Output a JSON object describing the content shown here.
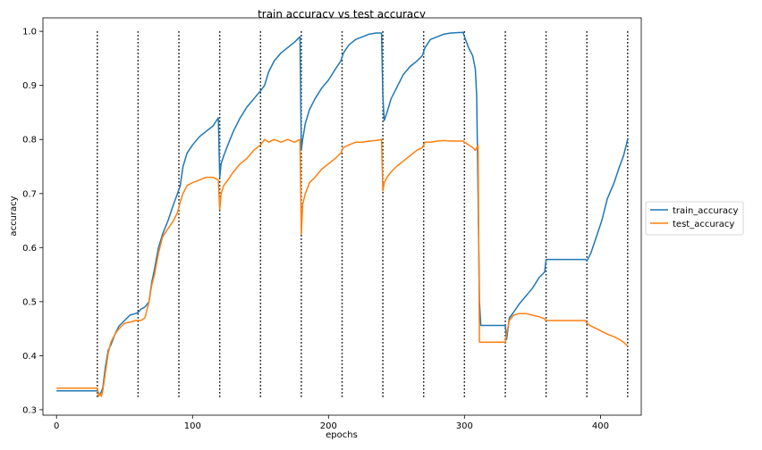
{
  "chart_data": {
    "type": "line",
    "title": "train accuracy vs test accuracy",
    "xlabel": "epochs",
    "ylabel": "accuracy",
    "xlim": [
      -10,
      430
    ],
    "ylim": [
      0.29,
      1.025
    ],
    "xticks": [
      0,
      100,
      200,
      300,
      400
    ],
    "yticks": [
      0.3,
      0.4,
      0.5,
      0.6,
      0.7,
      0.8,
      0.9,
      1.0
    ],
    "grid": false,
    "legend": "outside-right",
    "vlines": {
      "x": [
        30,
        60,
        90,
        120,
        150,
        180,
        210,
        240,
        270,
        300,
        330,
        360,
        390,
        420
      ],
      "ymin": 0.32,
      "ymax": 1.0,
      "style": "dotted",
      "color": "#000000"
    },
    "series": [
      {
        "name": "train_accuracy",
        "color": "#1f77b4",
        "points": [
          [
            0,
            0.335
          ],
          [
            30,
            0.335
          ],
          [
            32,
            0.328
          ],
          [
            34,
            0.34
          ],
          [
            36,
            0.38
          ],
          [
            38,
            0.41
          ],
          [
            40,
            0.42
          ],
          [
            43,
            0.44
          ],
          [
            46,
            0.455
          ],
          [
            50,
            0.465
          ],
          [
            54,
            0.475
          ],
          [
            58,
            0.478
          ],
          [
            60,
            0.48
          ],
          [
            62,
            0.486
          ],
          [
            65,
            0.49
          ],
          [
            68,
            0.5
          ],
          [
            70,
            0.535
          ],
          [
            72,
            0.56
          ],
          [
            75,
            0.6
          ],
          [
            78,
            0.625
          ],
          [
            82,
            0.65
          ],
          [
            86,
            0.68
          ],
          [
            89,
            0.7
          ],
          [
            91,
            0.715
          ],
          [
            93,
            0.75
          ],
          [
            96,
            0.775
          ],
          [
            100,
            0.79
          ],
          [
            105,
            0.805
          ],
          [
            110,
            0.815
          ],
          [
            115,
            0.825
          ],
          [
            119,
            0.84
          ],
          [
            120,
            0.73
          ],
          [
            121,
            0.755
          ],
          [
            123,
            0.77
          ],
          [
            126,
            0.79
          ],
          [
            130,
            0.815
          ],
          [
            135,
            0.84
          ],
          [
            140,
            0.86
          ],
          [
            145,
            0.875
          ],
          [
            150,
            0.89
          ],
          [
            153,
            0.9
          ],
          [
            156,
            0.925
          ],
          [
            160,
            0.945
          ],
          [
            165,
            0.96
          ],
          [
            170,
            0.97
          ],
          [
            175,
            0.98
          ],
          [
            179,
            0.99
          ],
          [
            180,
            0.78
          ],
          [
            181,
            0.8
          ],
          [
            183,
            0.83
          ],
          [
            186,
            0.855
          ],
          [
            190,
            0.875
          ],
          [
            195,
            0.895
          ],
          [
            200,
            0.91
          ],
          [
            205,
            0.93
          ],
          [
            209,
            0.945
          ],
          [
            211,
            0.96
          ],
          [
            215,
            0.975
          ],
          [
            220,
            0.985
          ],
          [
            225,
            0.99
          ],
          [
            230,
            0.995
          ],
          [
            235,
            0.997
          ],
          [
            239,
            0.997
          ],
          [
            240,
            0.88
          ],
          [
            241,
            0.835
          ],
          [
            243,
            0.85
          ],
          [
            246,
            0.875
          ],
          [
            250,
            0.895
          ],
          [
            255,
            0.92
          ],
          [
            260,
            0.935
          ],
          [
            265,
            0.945
          ],
          [
            269,
            0.955
          ],
          [
            271,
            0.97
          ],
          [
            275,
            0.985
          ],
          [
            280,
            0.99
          ],
          [
            285,
            0.995
          ],
          [
            290,
            0.997
          ],
          [
            299,
            0.998
          ],
          [
            300,
            0.99
          ],
          [
            303,
            0.97
          ],
          [
            306,
            0.955
          ],
          [
            308,
            0.93
          ],
          [
            309,
            0.88
          ],
          [
            310,
            0.7
          ],
          [
            311,
            0.5
          ],
          [
            312,
            0.456
          ],
          [
            330,
            0.456
          ],
          [
            331,
            0.43
          ],
          [
            333,
            0.47
          ],
          [
            336,
            0.48
          ],
          [
            340,
            0.495
          ],
          [
            345,
            0.51
          ],
          [
            350,
            0.525
          ],
          [
            355,
            0.545
          ],
          [
            359,
            0.555
          ],
          [
            360,
            0.578
          ],
          [
            389,
            0.578
          ],
          [
            390,
            0.575
          ],
          [
            393,
            0.59
          ],
          [
            397,
            0.62
          ],
          [
            401,
            0.65
          ],
          [
            405,
            0.69
          ],
          [
            410,
            0.72
          ],
          [
            414,
            0.75
          ],
          [
            417,
            0.77
          ],
          [
            420,
            0.8
          ]
        ]
      },
      {
        "name": "test_accuracy",
        "color": "#ff7f0e",
        "points": [
          [
            0,
            0.34
          ],
          [
            30,
            0.34
          ],
          [
            31,
            0.325
          ],
          [
            32,
            0.33
          ],
          [
            33,
            0.325
          ],
          [
            34,
            0.335
          ],
          [
            36,
            0.37
          ],
          [
            38,
            0.405
          ],
          [
            40,
            0.425
          ],
          [
            43,
            0.44
          ],
          [
            46,
            0.45
          ],
          [
            50,
            0.46
          ],
          [
            54,
            0.462
          ],
          [
            58,
            0.465
          ],
          [
            60,
            0.465
          ],
          [
            62,
            0.465
          ],
          [
            65,
            0.47
          ],
          [
            68,
            0.5
          ],
          [
            70,
            0.53
          ],
          [
            72,
            0.55
          ],
          [
            75,
            0.59
          ],
          [
            78,
            0.62
          ],
          [
            82,
            0.635
          ],
          [
            86,
            0.65
          ],
          [
            89,
            0.665
          ],
          [
            91,
            0.685
          ],
          [
            93,
            0.7
          ],
          [
            96,
            0.715
          ],
          [
            100,
            0.72
          ],
          [
            105,
            0.725
          ],
          [
            110,
            0.73
          ],
          [
            115,
            0.73
          ],
          [
            119,
            0.725
          ],
          [
            120,
            0.67
          ],
          [
            121,
            0.7
          ],
          [
            123,
            0.715
          ],
          [
            126,
            0.725
          ],
          [
            130,
            0.74
          ],
          [
            135,
            0.755
          ],
          [
            140,
            0.765
          ],
          [
            145,
            0.78
          ],
          [
            150,
            0.79
          ],
          [
            153,
            0.8
          ],
          [
            156,
            0.795
          ],
          [
            160,
            0.8
          ],
          [
            165,
            0.795
          ],
          [
            170,
            0.8
          ],
          [
            175,
            0.795
          ],
          [
            179,
            0.8
          ],
          [
            180,
            0.625
          ],
          [
            181,
            0.68
          ],
          [
            183,
            0.7
          ],
          [
            186,
            0.72
          ],
          [
            190,
            0.73
          ],
          [
            195,
            0.745
          ],
          [
            200,
            0.755
          ],
          [
            205,
            0.765
          ],
          [
            209,
            0.775
          ],
          [
            211,
            0.785
          ],
          [
            215,
            0.79
          ],
          [
            220,
            0.795
          ],
          [
            225,
            0.795
          ],
          [
            230,
            0.797
          ],
          [
            235,
            0.798
          ],
          [
            239,
            0.8
          ],
          [
            240,
            0.705
          ],
          [
            241,
            0.72
          ],
          [
            243,
            0.73
          ],
          [
            246,
            0.74
          ],
          [
            250,
            0.75
          ],
          [
            255,
            0.76
          ],
          [
            260,
            0.77
          ],
          [
            265,
            0.78
          ],
          [
            269,
            0.785
          ],
          [
            271,
            0.795
          ],
          [
            275,
            0.795
          ],
          [
            280,
            0.797
          ],
          [
            285,
            0.798
          ],
          [
            290,
            0.797
          ],
          [
            299,
            0.797
          ],
          [
            300,
            0.795
          ],
          [
            303,
            0.79
          ],
          [
            306,
            0.785
          ],
          [
            308,
            0.78
          ],
          [
            310,
            0.79
          ],
          [
            311,
            0.425
          ],
          [
            330,
            0.425
          ],
          [
            331,
            0.44
          ],
          [
            333,
            0.465
          ],
          [
            336,
            0.475
          ],
          [
            340,
            0.478
          ],
          [
            345,
            0.478
          ],
          [
            350,
            0.475
          ],
          [
            355,
            0.472
          ],
          [
            359,
            0.468
          ],
          [
            360,
            0.465
          ],
          [
            389,
            0.465
          ],
          [
            390,
            0.46
          ],
          [
            393,
            0.455
          ],
          [
            397,
            0.45
          ],
          [
            401,
            0.445
          ],
          [
            405,
            0.44
          ],
          [
            410,
            0.435
          ],
          [
            414,
            0.43
          ],
          [
            417,
            0.425
          ],
          [
            420,
            0.418
          ]
        ]
      }
    ]
  }
}
